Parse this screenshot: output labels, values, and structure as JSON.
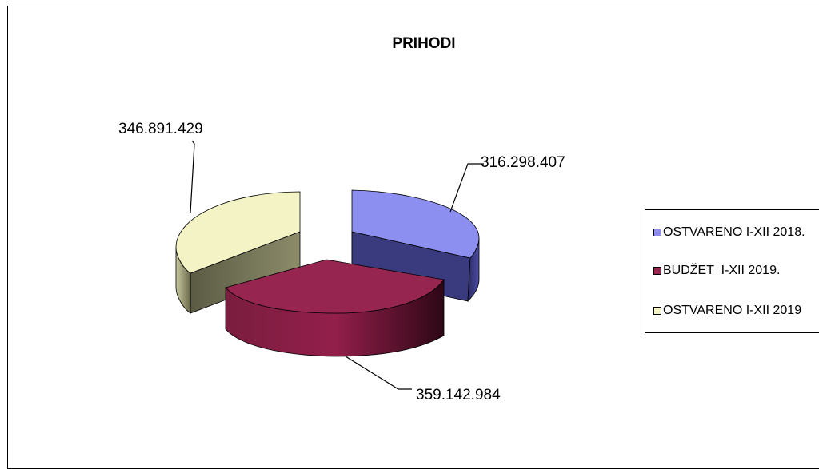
{
  "chart_data": {
    "type": "pie",
    "title": "PRIHODI",
    "three_d": true,
    "exploded": true,
    "legend_position": "right",
    "slices": [
      {
        "name": "OSTVARENO I-XII 2018.",
        "value": 316298407,
        "label": "316.298.407",
        "color": "#8d8ff0"
      },
      {
        "name": "BUDŽET  I-XII 2019.",
        "value": 359142984,
        "label": "359.142.984",
        "color": "#96264f"
      },
      {
        "name": "OSTVARENO I-XII 2019",
        "value": 346891429,
        "label": "346.891.429",
        "color": "#f3f3c6"
      }
    ]
  }
}
